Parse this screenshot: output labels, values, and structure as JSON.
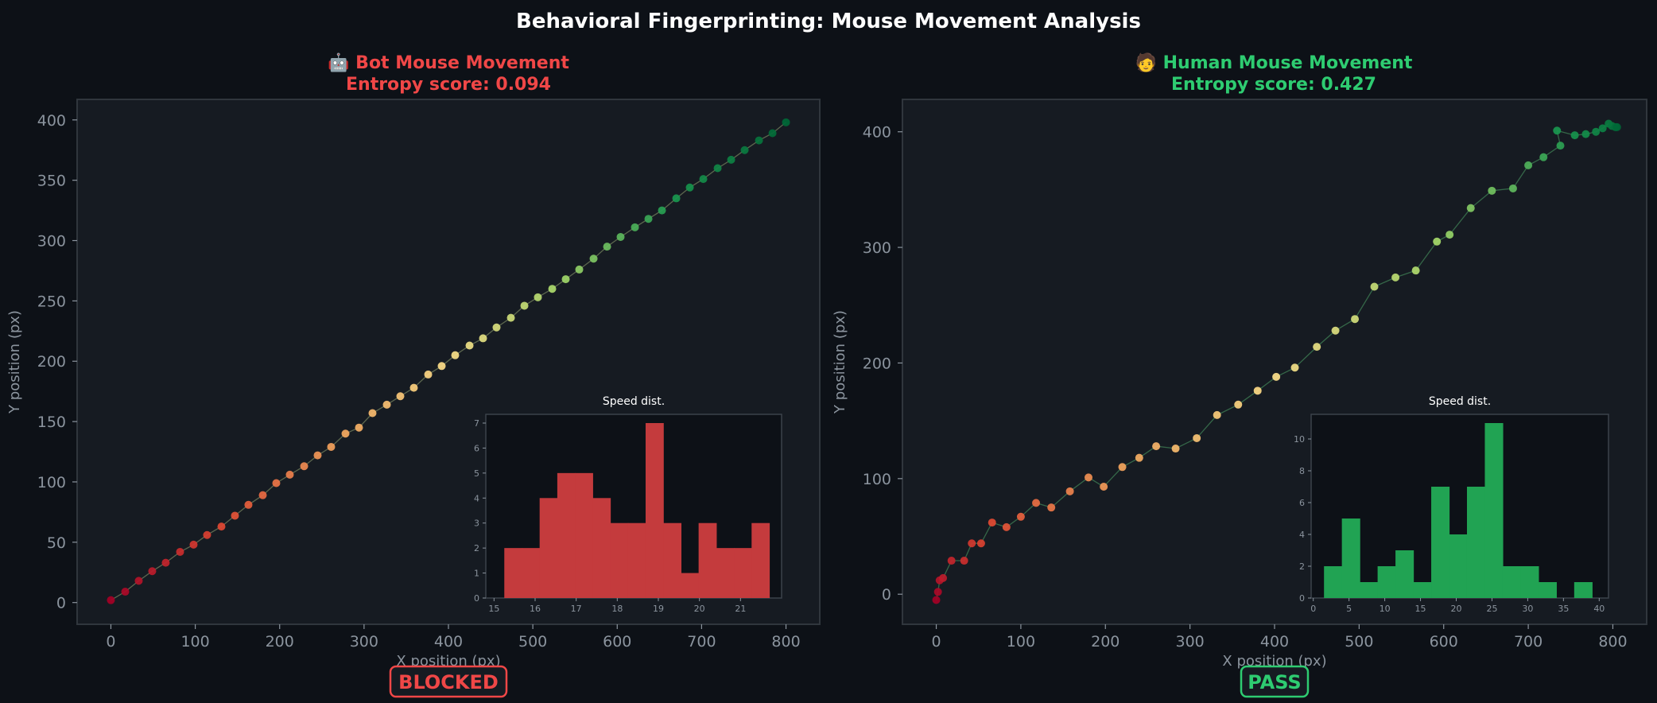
{
  "title": "Behavioral Fingerprinting: Mouse Movement Analysis",
  "chart_data": [
    {
      "type": "scatter",
      "title_line1": "🤖 Bot Mouse Movement",
      "title_line2": "Entropy score: 0.094",
      "accent": "#f04747",
      "xlabel": "X position (px)",
      "ylabel": "Y position (px)",
      "xlim": [
        -40,
        840
      ],
      "ylim": [
        -18,
        417
      ],
      "xticks": [
        0,
        100,
        200,
        300,
        400,
        500,
        600,
        700,
        800
      ],
      "yticks": [
        0,
        50,
        100,
        150,
        200,
        250,
        300,
        350,
        400
      ],
      "line_color": "#6e7b5a",
      "x": [
        0,
        17,
        33,
        49,
        65,
        82,
        98,
        114,
        131,
        147,
        163,
        180,
        196,
        212,
        229,
        245,
        261,
        278,
        294,
        310,
        327,
        343,
        359,
        376,
        392,
        408,
        425,
        441,
        457,
        474,
        490,
        506,
        523,
        539,
        555,
        572,
        588,
        604,
        621,
        637,
        653,
        670,
        686,
        702,
        719,
        735,
        751,
        768,
        784,
        800
      ],
      "y": [
        2,
        9,
        18,
        26,
        33,
        42,
        48,
        56,
        63,
        72,
        81,
        89,
        99,
        106,
        113,
        122,
        129,
        140,
        145,
        157,
        164,
        171,
        178,
        189,
        196,
        205,
        213,
        219,
        228,
        236,
        246,
        253,
        260,
        268,
        276,
        285,
        295,
        303,
        311,
        318,
        325,
        335,
        344,
        351,
        360,
        367,
        375,
        383,
        389,
        398
      ],
      "badge": "BLOCKED",
      "inset": {
        "title": "Speed dist.",
        "type": "histogram",
        "color": "#c43b3d",
        "xlim": [
          14.8,
          22.0
        ],
        "ylim": [
          0,
          7.35
        ],
        "xticks": [
          15,
          16,
          17,
          18,
          19,
          20,
          21
        ],
        "yticks": [
          0,
          1,
          2,
          3,
          4,
          5,
          6,
          7
        ],
        "bin_edges": [
          15.25,
          15.68,
          16.11,
          16.54,
          16.97,
          17.4,
          17.83,
          18.26,
          18.69,
          19.12,
          19.55,
          19.98,
          20.41,
          20.84,
          21.27,
          21.7
        ],
        "counts": [
          2,
          2,
          4,
          5,
          5,
          4,
          3,
          3,
          7,
          3,
          1,
          3,
          2,
          2,
          3
        ]
      }
    },
    {
      "type": "scatter",
      "title_line1": "🧑 Human Mouse Movement",
      "title_line2": "Entropy score: 0.427",
      "accent": "#2ecc71",
      "xlabel": "X position (px)",
      "ylabel": "Y position (px)",
      "xlim": [
        -40,
        840
      ],
      "ylim": [
        -26,
        428
      ],
      "xticks": [
        0,
        100,
        200,
        300,
        400,
        500,
        600,
        700,
        800
      ],
      "yticks": [
        0,
        100,
        200,
        300,
        400
      ],
      "line_color": "#3d7a52",
      "x": [
        0,
        2,
        4,
        8,
        18,
        33,
        42,
        53,
        66,
        83,
        100,
        118,
        136,
        158,
        180,
        198,
        220,
        240,
        260,
        283,
        308,
        332,
        357,
        380,
        402,
        424,
        450,
        472,
        495,
        518,
        543,
        567,
        592,
        607,
        632,
        657,
        682,
        700,
        718,
        738,
        734,
        755,
        768,
        780,
        788,
        795,
        799,
        803,
        805
      ],
      "y": [
        -5,
        2,
        12,
        14,
        29,
        29,
        44,
        44,
        62,
        58,
        67,
        79,
        75,
        89,
        101,
        93,
        110,
        118,
        128,
        126,
        135,
        155,
        164,
        176,
        188,
        196,
        214,
        228,
        238,
        266,
        274,
        280,
        305,
        311,
        334,
        349,
        351,
        371,
        378,
        388,
        401,
        397,
        398,
        400,
        403,
        407,
        405,
        404,
        404
      ],
      "badge": "PASS",
      "inset": {
        "title": "Speed dist.",
        "type": "histogram",
        "color": "#21a353",
        "xlim": [
          -0.3,
          41.3
        ],
        "ylim": [
          0,
          11.55
        ],
        "xticks": [
          0,
          5,
          10,
          15,
          20,
          25,
          30,
          35,
          40
        ],
        "yticks": [
          0,
          2,
          4,
          6,
          8,
          10
        ],
        "bin_edges": [
          1.5,
          4.0,
          6.5,
          9.0,
          11.5,
          14.0,
          16.5,
          19.0,
          21.5,
          24.0,
          26.5,
          29.0,
          31.5,
          34.0,
          36.5,
          39.0
        ],
        "counts": [
          2,
          5,
          1,
          2,
          3,
          1,
          7,
          4,
          7,
          11,
          2,
          2,
          1,
          0,
          1
        ]
      }
    }
  ]
}
